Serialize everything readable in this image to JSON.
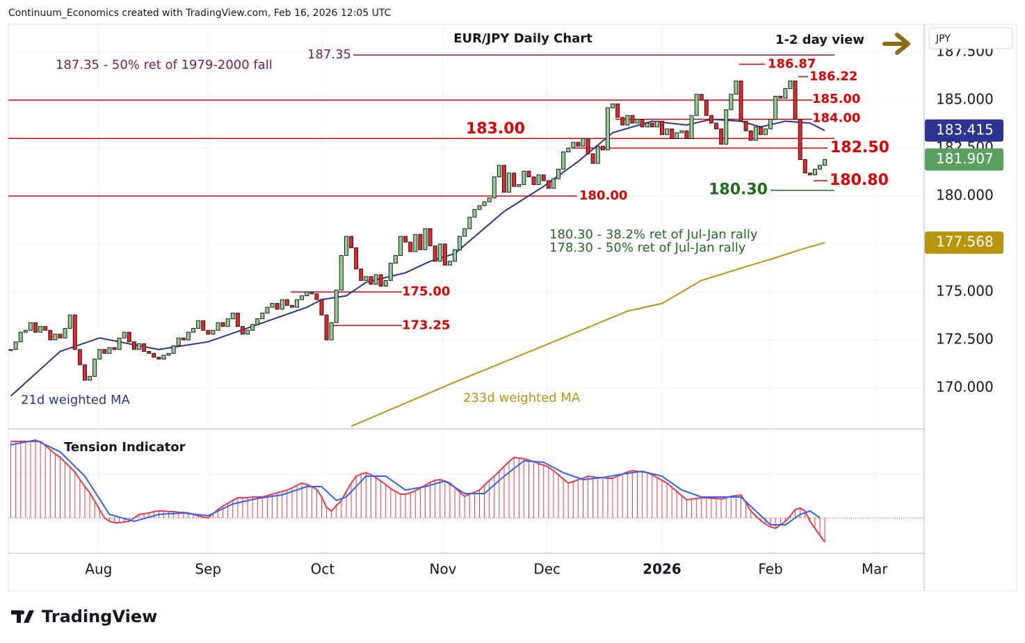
{
  "header": "Continuum_Economics created with TradingView.com, Feb 16, 2026 12:05 UTC",
  "footer": "TradingView",
  "chart_data": [
    {
      "type": "candlestick",
      "title": "EUR/JPY Daily Chart",
      "subtitle": "1-2 day view",
      "axis_label": "JPY",
      "up_color": "#8fcf8f",
      "down_color": "#e8252b",
      "grid": true,
      "xlim": [
        -0.5,
        185
      ],
      "xticks": [
        {
          "value": 17.8,
          "label": "Aug"
        },
        {
          "value": 40,
          "label": "Sep"
        },
        {
          "value": 63.2,
          "label": "Oct"
        },
        {
          "value": 87.6,
          "label": "Nov"
        },
        {
          "value": 108.7,
          "label": "Dec"
        },
        {
          "value": 132,
          "label": "2026"
        },
        {
          "value": 154,
          "label": "Feb"
        },
        {
          "value": 175.1,
          "label": "Mar"
        }
      ],
      "ylim": [
        167.97,
        188.95
      ],
      "yticks": [
        {
          "value": 170,
          "label": "170.000"
        },
        {
          "value": 172.5,
          "label": "172.500"
        },
        {
          "value": 175,
          "label": "175.000"
        },
        {
          "value": 177.5,
          "label": "177.500"
        },
        {
          "value": 180,
          "label": "180.000"
        },
        {
          "value": 182.5,
          "label": "182.500"
        },
        {
          "value": 185,
          "label": "185.000"
        },
        {
          "value": 187.5,
          "label": "187.500"
        }
      ],
      "values": [
        172.0,
        172.4,
        172.9,
        173.0,
        173.4,
        172.9,
        173.2,
        173.0,
        172.5,
        172.8,
        172.6,
        173.1,
        173.8,
        172.0,
        171.2,
        170.4,
        170.6,
        171.5,
        172.0,
        171.8,
        172.1,
        172.0,
        172.6,
        172.9,
        172.4,
        172.0,
        172.3,
        171.9,
        171.8,
        171.6,
        171.5,
        171.7,
        171.8,
        172.2,
        172.6,
        172.5,
        172.9,
        173.1,
        173.5,
        173.0,
        172.8,
        173.0,
        173.4,
        173.2,
        173.6,
        173.9,
        173.2,
        172.8,
        173.0,
        173.3,
        173.6,
        173.9,
        174.2,
        174.4,
        174.1,
        174.6,
        174.3,
        174.2,
        174.6,
        174.8,
        175.0,
        174.9,
        174.6,
        173.8,
        172.5,
        173.4,
        175.1,
        176.9,
        177.9,
        177.3,
        176.2,
        175.6,
        175.8,
        175.4,
        175.9,
        175.3,
        175.6,
        176.5,
        176.9,
        177.9,
        177.6,
        177.1,
        178.0,
        177.2,
        178.3,
        177.4,
        176.6,
        177.5,
        176.4,
        176.6,
        177.2,
        177.9,
        178.3,
        178.9,
        179.3,
        179.5,
        179.7,
        179.9,
        181.0,
        181.6,
        180.2,
        181.2,
        180.5,
        180.6,
        181.3,
        181.0,
        180.6,
        181.1,
        180.8,
        180.4,
        180.9,
        181.4,
        182.3,
        182.5,
        182.8,
        182.6,
        183.0,
        182.2,
        181.7,
        182.6,
        182.4,
        184.6,
        184.8,
        184.1,
        183.7,
        184.2,
        183.8,
        184.0,
        183.6,
        183.8,
        183.6,
        183.9,
        183.2,
        183.5,
        183.0,
        183.3,
        183.4,
        183.0,
        184.2,
        185.3,
        185.0,
        184.2,
        183.8,
        183.5,
        182.7,
        184.5,
        185.3,
        186.0,
        183.9,
        183.4,
        182.9,
        183.6,
        183.2,
        183.5,
        184.0,
        185.2,
        185.1,
        185.6,
        186.0,
        184.0,
        181.9,
        181.2,
        181.1,
        181.4,
        181.6,
        181.907
      ],
      "series": [
        {
          "name": "21d weighted MA",
          "color": "#2b3591",
          "x": [
            0,
            10,
            18,
            30,
            40,
            50,
            60,
            63,
            68,
            72,
            80,
            85,
            90,
            100,
            108,
            115,
            122,
            130,
            137,
            142,
            148,
            152,
            157,
            162,
            165
          ],
          "values": [
            169.57,
            171.9,
            172.6,
            172.0,
            172.4,
            173.3,
            174.2,
            174.6,
            174.8,
            175.5,
            176.0,
            176.6,
            177.0,
            179.2,
            180.5,
            181.8,
            183.3,
            183.9,
            183.7,
            184.0,
            183.9,
            183.6,
            183.9,
            183.8,
            183.415
          ]
        },
        {
          "name": "233d weighted MA",
          "color": "#b8960c",
          "x": [
            69,
            90,
            110,
            125,
            132,
            140,
            150,
            154,
            160,
            165
          ],
          "values": [
            168.0,
            170.3,
            172.4,
            174.0,
            174.4,
            175.6,
            176.4,
            176.7,
            177.2,
            177.568
          ]
        }
      ],
      "price_tags": [
        {
          "value": 183.415,
          "color": "#2b3591"
        },
        {
          "value": 181.907,
          "color": "#5aa05e"
        },
        {
          "value": 177.568,
          "color": "#b8960c"
        }
      ],
      "levels": [
        {
          "value": 187.35,
          "label": "187.35",
          "color": "#7a1b52"
        },
        {
          "value": 186.87,
          "label": "186.87",
          "color": "#e00000"
        },
        {
          "value": 186.22,
          "label": "186.22",
          "color": "#e00000"
        },
        {
          "value": 185,
          "label": "185.00",
          "color": "#e00000"
        },
        {
          "value": 184,
          "label": "184.00",
          "color": "#e00000"
        },
        {
          "value": 183,
          "label": "183.00",
          "color": "#e00000"
        },
        {
          "value": 182.5,
          "label": "182.50",
          "color": "#e00000"
        },
        {
          "value": 180.8,
          "label": "180.80",
          "color": "#e00000"
        },
        {
          "value": 180.3,
          "label": "180.30",
          "color": "#1e6b1e"
        },
        {
          "value": 180,
          "label": "180.00",
          "color": "#e00000"
        },
        {
          "value": 175,
          "label": "175.00",
          "color": "#e00000"
        },
        {
          "value": 173.25,
          "label": "173.25",
          "color": "#e00000"
        }
      ],
      "annotations": [
        "187.35 - 50% ret of 1979-2000 fall",
        "180.30 - 38.2% ret of Jul-Jan rally",
        "178.30 - 50% ret of Jul-Jan rally"
      ]
    },
    {
      "type": "tension",
      "title": "Tension Indicator",
      "color": "#f23645",
      "ylim": [
        -0.5,
        1.2
      ],
      "values": [
        1.1,
        1.1,
        1.1,
        1.1,
        1.1,
        1.1,
        1.1,
        1.04,
        0.98,
        0.92,
        0.87,
        0.8,
        0.73,
        0.66,
        0.55,
        0.45,
        0.36,
        0.24,
        0.12,
        0.0,
        -0.05,
        -0.07,
        -0.07,
        -0.06,
        -0.05,
        0.0,
        0.05,
        0.06,
        0.07,
        0.09,
        0.1,
        0.1,
        0.09,
        0.09,
        0.08,
        0.08,
        0.07,
        0.05,
        0.03,
        0.01,
        0.0,
        0.06,
        0.12,
        0.17,
        0.21,
        0.25,
        0.29,
        0.29,
        0.29,
        0.3,
        0.3,
        0.3,
        0.32,
        0.34,
        0.36,
        0.38,
        0.4,
        0.43,
        0.47,
        0.5,
        0.48,
        0.45,
        0.41,
        0.3,
        0.15,
        0.1,
        0.18,
        0.25,
        0.38,
        0.5,
        0.6,
        0.63,
        0.65,
        0.62,
        0.58,
        0.53,
        0.48,
        0.42,
        0.38,
        0.34,
        0.34,
        0.36,
        0.39,
        0.43,
        0.47,
        0.51,
        0.54,
        0.55,
        0.53,
        0.5,
        0.44,
        0.37,
        0.31,
        0.34,
        0.37,
        0.4,
        0.47,
        0.54,
        0.6,
        0.67,
        0.74,
        0.81,
        0.87,
        0.86,
        0.85,
        0.83,
        0.81,
        0.78,
        0.76,
        0.73,
        0.68,
        0.62,
        0.56,
        0.5,
        0.52,
        0.55,
        0.57,
        0.6,
        0.59,
        0.58,
        0.58,
        0.57,
        0.57,
        0.6,
        0.63,
        0.66,
        0.68,
        0.67,
        0.66,
        0.65,
        0.62,
        0.58,
        0.54,
        0.5,
        0.44,
        0.38,
        0.32,
        0.26,
        0.27,
        0.28,
        0.29,
        0.29,
        0.28,
        0.28,
        0.27,
        0.29,
        0.31,
        0.32,
        0.33,
        0.22,
        0.1,
        0.03,
        -0.04,
        -0.09,
        -0.13,
        -0.15,
        -0.1,
        -0.05,
        0.03,
        0.12,
        0.14,
        0.1,
        -0.05,
        -0.15,
        -0.25,
        -0.35
      ],
      "series": [
        {
          "color": "#2962ff",
          "x": [
            0,
            5,
            10,
            15,
            20,
            25,
            30,
            35,
            40,
            45,
            50,
            55,
            60,
            63,
            66,
            68,
            72,
            76,
            80,
            84,
            88,
            92,
            96,
            100,
            104,
            108,
            112,
            116,
            120,
            124,
            128,
            132,
            136,
            140,
            144,
            148,
            151,
            154,
            157,
            160,
            162,
            164
          ],
          "values": [
            1.05,
            1.12,
            0.95,
            0.6,
            0.05,
            -0.05,
            0.05,
            0.07,
            0.03,
            0.2,
            0.28,
            0.33,
            0.45,
            0.45,
            0.25,
            0.3,
            0.6,
            0.6,
            0.4,
            0.45,
            0.53,
            0.35,
            0.35,
            0.6,
            0.82,
            0.8,
            0.65,
            0.55,
            0.58,
            0.63,
            0.67,
            0.6,
            0.4,
            0.3,
            0.3,
            0.3,
            0.1,
            -0.1,
            -0.1,
            0.05,
            0.1,
            0.0
          ]
        }
      ]
    }
  ]
}
